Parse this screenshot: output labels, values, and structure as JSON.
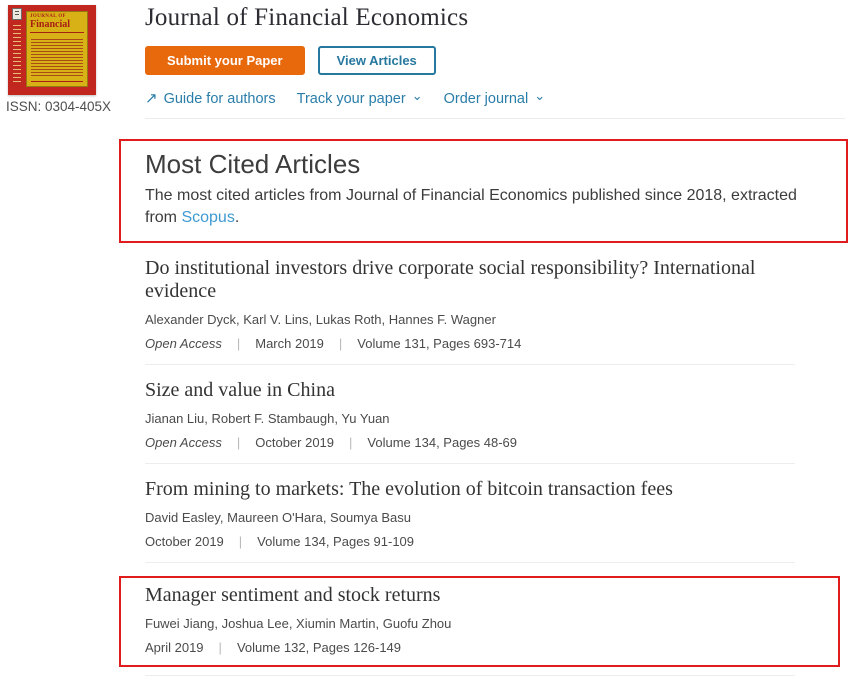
{
  "header": {
    "title": "Journal of Financial Economics",
    "issn": "ISSN: 0304-405X",
    "cover": {
      "line1": "JOURNAL OF",
      "line2": "Financial"
    },
    "submit_button": "Submit your Paper",
    "view_button": "View Articles",
    "links": {
      "guide": "Guide for authors",
      "track": "Track your paper",
      "order": "Order journal"
    }
  },
  "icons": {
    "external_link": "↗",
    "chevron_down": "⌄"
  },
  "most_cited": {
    "heading": "Most Cited Articles",
    "desc_before": "The most cited articles from Journal of Financial Economics published since 2018, extracted from ",
    "scopus": "Scopus",
    "desc_after": "."
  },
  "articles": [
    {
      "title": "Do institutional investors drive corporate social responsibility? International evidence",
      "authors": "Alexander Dyck, Karl V. Lins, Lukas Roth, Hannes F. Wagner",
      "open_access": "Open Access",
      "date": "March 2019",
      "volume_pages": "Volume 131, Pages 693-714"
    },
    {
      "title": "Size and value in China",
      "authors": "Jianan Liu, Robert F. Stambaugh, Yu Yuan",
      "open_access": "Open Access",
      "date": "October 2019",
      "volume_pages": "Volume 134, Pages 48-69"
    },
    {
      "title": "From mining to markets: The evolution of bitcoin transaction fees",
      "authors": "David Easley, Maureen O'Hara, Soumya Basu",
      "date": "October 2019",
      "volume_pages": "Volume 134, Pages 91-109"
    },
    {
      "title": "Manager sentiment and stock returns",
      "authors": "Fuwei Jiang, Joshua Lee, Xiumin Martin, Guofu Zhou",
      "date": "April 2019",
      "volume_pages": "Volume 132, Pages 126-149"
    }
  ],
  "colors": {
    "accent_orange": "#e8680c",
    "accent_teal": "#27789f",
    "annotation_red": "#e11c1c",
    "scopus_link_blue": "#3f9ad2",
    "cover_red": "#c1271e",
    "cover_yellow": "#d8b117"
  }
}
